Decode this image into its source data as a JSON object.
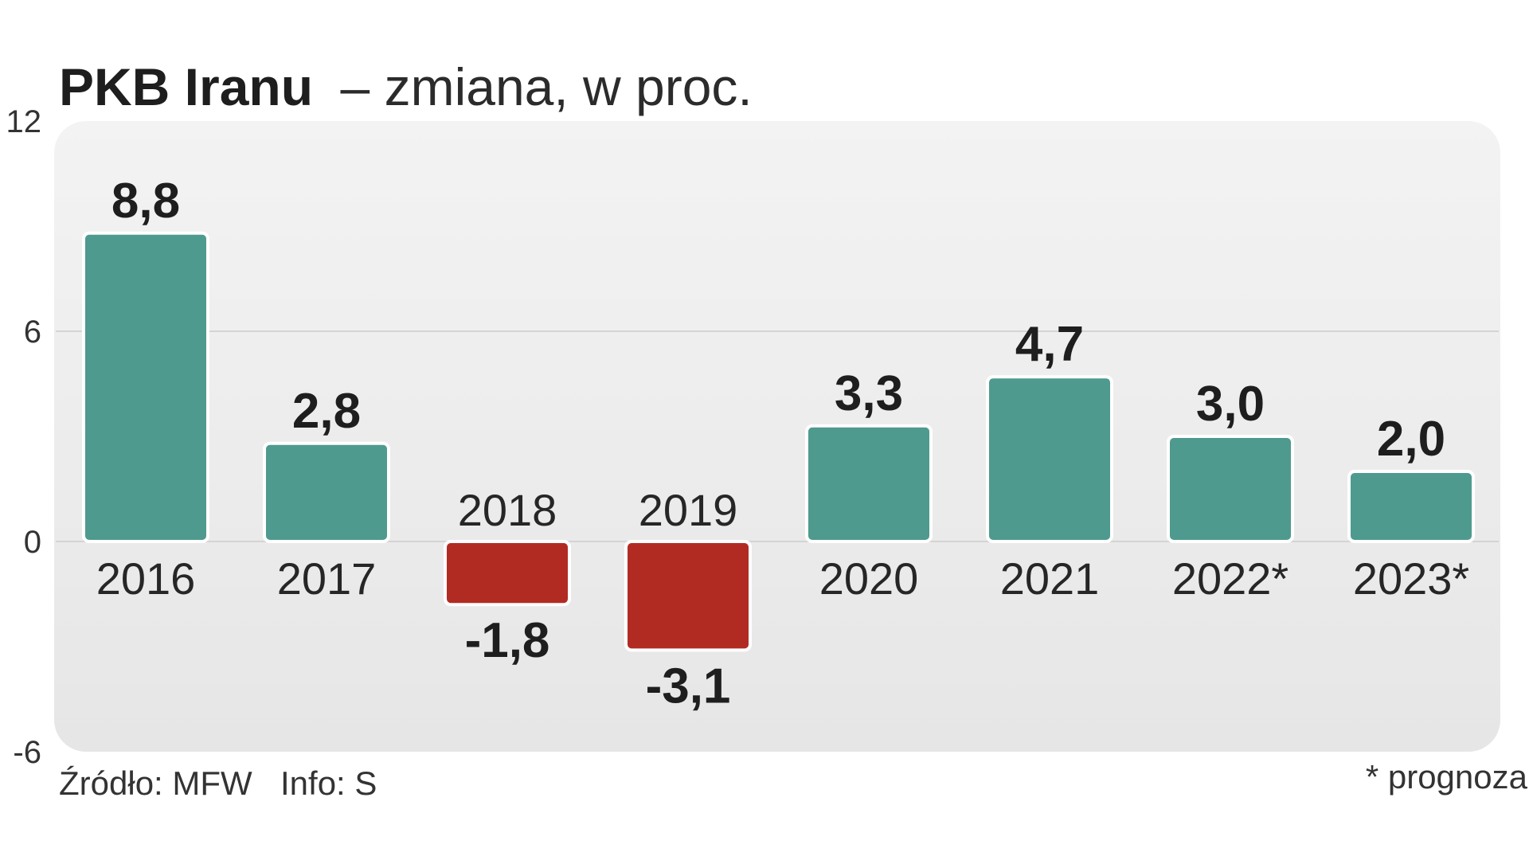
{
  "chart_data": {
    "type": "bar",
    "title": "PKB Iranu",
    "subtitle": "– zmiana, w proc.",
    "categories": [
      "2016",
      "2017",
      "2018",
      "2019",
      "2020",
      "2021",
      "2022*",
      "2023*"
    ],
    "values": [
      8.8,
      2.8,
      -1.8,
      -3.1,
      3.3,
      4.7,
      3.0,
      2.0
    ],
    "value_labels": [
      "8,8",
      "2,8",
      "-1,8",
      "-3,1",
      "3,3",
      "4,7",
      "3,0",
      "2,0"
    ],
    "y_ticks": [
      12,
      6,
      0,
      -6
    ],
    "y_tick_labels": [
      "12",
      "6",
      "0",
      "-6"
    ],
    "ylim": [
      -6,
      12
    ],
    "grid": true,
    "xlabel": "",
    "ylabel": "",
    "colors": {
      "positive": "#4e9a8e",
      "negative": "#b22b22",
      "panel": "#ebebeb",
      "grid": "#d4d4d4"
    }
  },
  "footer": {
    "source": "Źródło: MFW",
    "info": "Info: S",
    "note": "* prognoza"
  }
}
